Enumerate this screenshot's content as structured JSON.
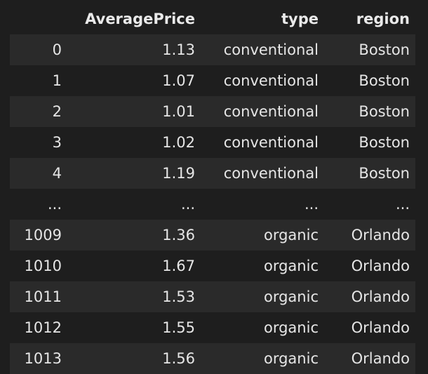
{
  "table": {
    "columns": [
      "",
      "AveragePrice",
      "type",
      "region"
    ],
    "rows": [
      {
        "index": "0",
        "AveragePrice": "1.13",
        "type": "conventional",
        "region": "Boston"
      },
      {
        "index": "1",
        "AveragePrice": "1.07",
        "type": "conventional",
        "region": "Boston"
      },
      {
        "index": "2",
        "AveragePrice": "1.01",
        "type": "conventional",
        "region": "Boston"
      },
      {
        "index": "3",
        "AveragePrice": "1.02",
        "type": "conventional",
        "region": "Boston"
      },
      {
        "index": "4",
        "AveragePrice": "1.19",
        "type": "conventional",
        "region": "Boston"
      },
      {
        "index": "...",
        "AveragePrice": "...",
        "type": "...",
        "region": "..."
      },
      {
        "index": "1009",
        "AveragePrice": "1.36",
        "type": "organic",
        "region": "Orlando"
      },
      {
        "index": "1010",
        "AveragePrice": "1.67",
        "type": "organic",
        "region": "Orlando"
      },
      {
        "index": "1011",
        "AveragePrice": "1.53",
        "type": "organic",
        "region": "Orlando"
      },
      {
        "index": "1012",
        "AveragePrice": "1.55",
        "type": "organic",
        "region": "Orlando"
      },
      {
        "index": "1013",
        "AveragePrice": "1.56",
        "type": "organic",
        "region": "Orlando"
      }
    ]
  }
}
